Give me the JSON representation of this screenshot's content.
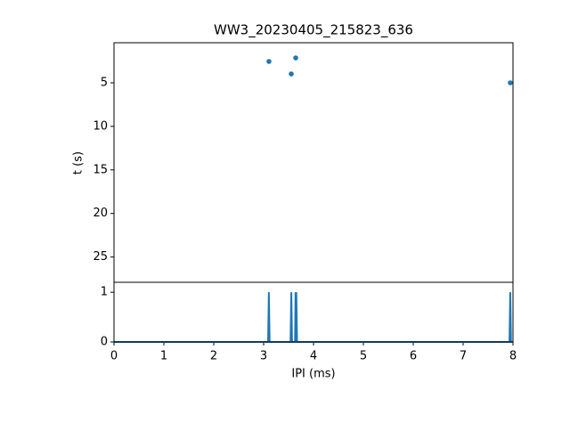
{
  "chart_data": [
    {
      "type": "scatter",
      "title": "WW3_20230405_215823_636",
      "ylabel": "t (s)",
      "x": [
        3.107,
        3.554,
        3.643,
        7.946
      ],
      "values": [
        2.55,
        3.98,
        2.14,
        5.0
      ],
      "color": "#1f77b4",
      "xlim": [
        0,
        8
      ],
      "ylim": [
        27.9,
        0.4
      ],
      "yticks": [
        5,
        10,
        15,
        20,
        25
      ]
    },
    {
      "type": "line",
      "xlabel": "IPI (ms)",
      "x": [
        0,
        3.09,
        3.105,
        3.12,
        3.54,
        3.555,
        3.57,
        3.63,
        3.64,
        3.65,
        3.655,
        3.67,
        7.93,
        7.945,
        7.96,
        8
      ],
      "values": [
        0,
        0,
        1,
        0,
        0,
        1,
        0,
        0,
        1,
        0,
        1,
        0,
        0,
        1,
        0,
        0
      ],
      "color": "#1f77b4",
      "xlim": [
        0,
        8
      ],
      "ylim": [
        0,
        1.2
      ],
      "xticks": [
        0,
        1,
        2,
        3,
        4,
        5,
        6,
        7,
        8
      ],
      "yticks": [
        0,
        1
      ]
    }
  ]
}
